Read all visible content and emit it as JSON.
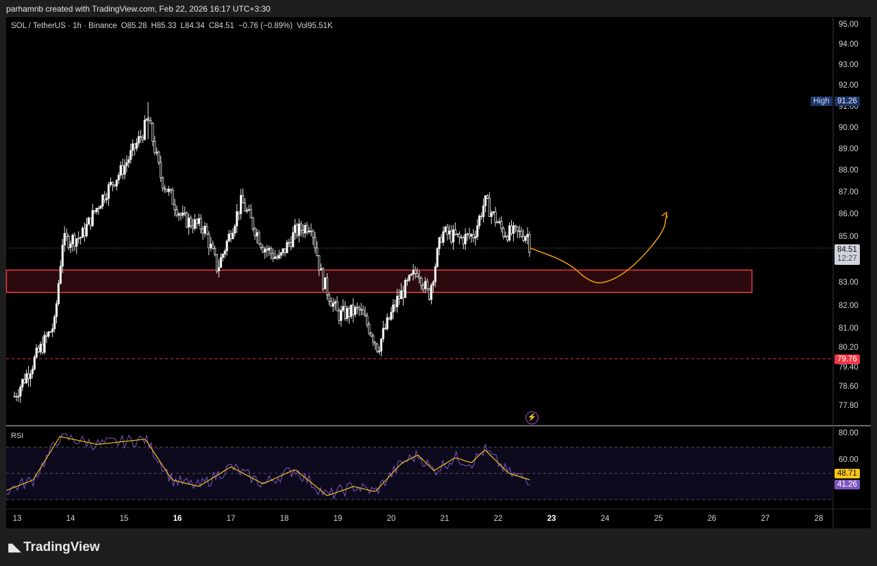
{
  "credit": "parhamnb created with TradingView.com, Feb 22, 2026 16:17 UTC+3:30",
  "legend": {
    "symbol": "SOL / TetherUS · 1h · Binance",
    "open": "O85.28",
    "high": "H85.33",
    "low": "L84.34",
    "close": "C84.51",
    "change": "−0.76 (−0.89%)",
    "volume": "Vol95.51K"
  },
  "price_axis": [
    "95.00",
    "94.00",
    "93.00",
    "92.00",
    "91.00",
    "90.00",
    "89.00",
    "88.00",
    "87.00",
    "86.00",
    "85.00",
    "83.00",
    "82.00",
    "81.00",
    "80.20",
    "79.40",
    "78.60",
    "77.80"
  ],
  "rsi_axis": [
    "80.00",
    "60.00"
  ],
  "time_axis": [
    {
      "label": "13",
      "bold": false
    },
    {
      "label": "14",
      "bold": false
    },
    {
      "label": "15",
      "bold": false
    },
    {
      "label": "16",
      "bold": true
    },
    {
      "label": "17",
      "bold": false
    },
    {
      "label": "18",
      "bold": false
    },
    {
      "label": "19",
      "bold": false
    },
    {
      "label": "20",
      "bold": false
    },
    {
      "label": "21",
      "bold": false
    },
    {
      "label": "22",
      "bold": false
    },
    {
      "label": "23",
      "bold": true
    },
    {
      "label": "24",
      "bold": false
    },
    {
      "label": "25",
      "bold": false
    },
    {
      "label": "26",
      "bold": false
    },
    {
      "label": "27",
      "bold": false
    },
    {
      "label": "28",
      "bold": false
    }
  ],
  "tags": {
    "high_name": "High",
    "high_value": "91.26",
    "current_price": "84.51",
    "countdown": "12:27",
    "low_line": "79.76",
    "rsi_value": "48.71",
    "rsi_ma_value": "41.26"
  },
  "rsi_label": "RSI",
  "logo_text": "TradingView",
  "colors": {
    "background": "#000000",
    "zone_border": "#f23645",
    "zone_fill": "#2a0a0e",
    "projection": "#f59e0b",
    "rsi_line": "#7e57c2",
    "rsi_ma": "#f5c518"
  },
  "chart_data": {
    "type": "candlestick",
    "ylim": [
      77.5,
      95.3
    ],
    "key_points": [
      {
        "day": 12.95,
        "price": 78.2
      },
      {
        "day": 13.4,
        "price": 80.0
      },
      {
        "day": 13.7,
        "price": 81.2
      },
      {
        "day": 13.85,
        "price": 84.8
      },
      {
        "day": 14.2,
        "price": 85.0
      },
      {
        "day": 14.6,
        "price": 86.8
      },
      {
        "day": 15.0,
        "price": 88.2
      },
      {
        "day": 15.35,
        "price": 89.8
      },
      {
        "day": 15.45,
        "price": 90.5
      },
      {
        "day": 15.7,
        "price": 87.6
      },
      {
        "day": 16.1,
        "price": 85.8
      },
      {
        "day": 16.5,
        "price": 85.4
      },
      {
        "day": 16.75,
        "price": 83.6
      },
      {
        "day": 17.2,
        "price": 86.6
      },
      {
        "day": 17.6,
        "price": 84.6
      },
      {
        "day": 17.9,
        "price": 84.0
      },
      {
        "day": 18.2,
        "price": 85.2
      },
      {
        "day": 18.5,
        "price": 85.6
      },
      {
        "day": 18.7,
        "price": 83.2
      },
      {
        "day": 19.0,
        "price": 81.6
      },
      {
        "day": 19.4,
        "price": 81.8
      },
      {
        "day": 19.6,
        "price": 81.0
      },
      {
        "day": 19.75,
        "price": 80.2
      },
      {
        "day": 20.1,
        "price": 82.2
      },
      {
        "day": 20.5,
        "price": 83.6
      },
      {
        "day": 20.7,
        "price": 82.4
      },
      {
        "day": 20.95,
        "price": 85.2
      },
      {
        "day": 21.3,
        "price": 84.9
      },
      {
        "day": 21.55,
        "price": 85.1
      },
      {
        "day": 21.75,
        "price": 86.6
      },
      {
        "day": 22.1,
        "price": 85.2
      },
      {
        "day": 22.55,
        "price": 85.1
      },
      {
        "day": 22.6,
        "price": 84.51
      }
    ],
    "high": 91.26,
    "current": 84.51,
    "low_line": 79.76,
    "zone": {
      "top": 83.55,
      "bottom": 82.58,
      "from_day": 12.8,
      "to_day": 26.75
    },
    "projection": [
      {
        "day": 22.6,
        "price": 84.51
      },
      {
        "day": 23.3,
        "price": 83.9
      },
      {
        "day": 23.7,
        "price": 83.05
      },
      {
        "day": 24.0,
        "price": 82.95
      },
      {
        "day": 24.5,
        "price": 83.6
      },
      {
        "day": 25.1,
        "price": 85.2
      },
      {
        "day": 25.15,
        "price": 86.0
      }
    ],
    "rsi": {
      "ylim": [
        25,
        85
      ],
      "upper_band": 70,
      "middle": 50,
      "lower_band": 30,
      "key_points": [
        {
          "day": 12.8,
          "price": 37
        },
        {
          "day": 13.3,
          "price": 45
        },
        {
          "day": 13.8,
          "price": 78
        },
        {
          "day": 14.5,
          "price": 72
        },
        {
          "day": 15.4,
          "price": 76
        },
        {
          "day": 15.9,
          "price": 45
        },
        {
          "day": 16.4,
          "price": 40
        },
        {
          "day": 17.0,
          "price": 55
        },
        {
          "day": 17.6,
          "price": 42
        },
        {
          "day": 18.2,
          "price": 53
        },
        {
          "day": 18.8,
          "price": 33
        },
        {
          "day": 19.3,
          "price": 40
        },
        {
          "day": 19.7,
          "price": 36
        },
        {
          "day": 20.2,
          "price": 58
        },
        {
          "day": 20.5,
          "price": 64
        },
        {
          "day": 20.8,
          "price": 52
        },
        {
          "day": 21.2,
          "price": 62
        },
        {
          "day": 21.5,
          "price": 58
        },
        {
          "day": 21.75,
          "price": 68
        },
        {
          "day": 22.2,
          "price": 50
        },
        {
          "day": 22.6,
          "price": 45
        }
      ]
    }
  }
}
